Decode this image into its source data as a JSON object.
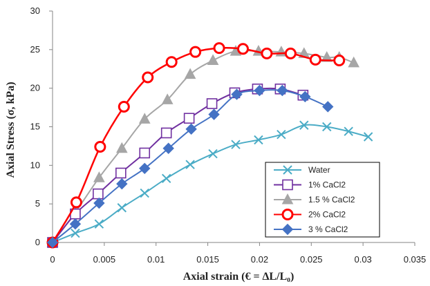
{
  "chart_data": {
    "type": "line",
    "title": "",
    "xlabel": "Axial strain (€ = ∆L/L₀)",
    "ylabel": "Axial Stress (σ, kPa)",
    "xlim": [
      0,
      0.035
    ],
    "ylim": [
      0,
      30
    ],
    "x_ticks": [
      "0",
      "0.005",
      "0.01",
      "0.015",
      "0.02",
      "0.025",
      "0.03",
      "0.035"
    ],
    "y_ticks": [
      "0",
      "5",
      "10",
      "15",
      "20",
      "25",
      "30"
    ],
    "grid": false,
    "legend_position": "bottom-right",
    "series": [
      {
        "name": "Water",
        "color": "#4bacc6",
        "marker": "x",
        "points": [
          [
            0,
            0
          ],
          [
            0.0022,
            1.2
          ],
          [
            0.0045,
            2.4
          ],
          [
            0.0067,
            4.5
          ],
          [
            0.0089,
            6.4
          ],
          [
            0.011,
            8.3
          ],
          [
            0.0133,
            10.1
          ],
          [
            0.0155,
            11.5
          ],
          [
            0.0177,
            12.7
          ],
          [
            0.0199,
            13.3
          ],
          [
            0.0221,
            14.0
          ],
          [
            0.0243,
            15.2
          ],
          [
            0.0265,
            15.0
          ],
          [
            0.0286,
            14.4
          ],
          [
            0.0305,
            13.7
          ]
        ]
      },
      {
        "name": "1% CaCl2",
        "color": "#7030a0",
        "marker": "square",
        "points": [
          [
            0,
            0
          ],
          [
            0.0022,
            3.7
          ],
          [
            0.0044,
            6.3
          ],
          [
            0.0066,
            9.0
          ],
          [
            0.0089,
            11.6
          ],
          [
            0.011,
            14.2
          ],
          [
            0.0132,
            16.1
          ],
          [
            0.0154,
            18.0
          ],
          [
            0.0176,
            19.4
          ],
          [
            0.0198,
            19.9
          ],
          [
            0.022,
            19.9
          ],
          [
            0.0242,
            19.1
          ]
        ]
      },
      {
        "name": "1.5 % CaCl2",
        "color": "#a6a6a6",
        "marker": "triangle",
        "points": [
          [
            0,
            0
          ],
          [
            0.0022,
            3.9
          ],
          [
            0.0045,
            8.4
          ],
          [
            0.0067,
            12.2
          ],
          [
            0.0089,
            16.0
          ],
          [
            0.0111,
            18.5
          ],
          [
            0.0133,
            21.8
          ],
          [
            0.0155,
            23.6
          ],
          [
            0.0177,
            24.8
          ],
          [
            0.0199,
            24.8
          ],
          [
            0.0221,
            24.7
          ],
          [
            0.0243,
            24.5
          ],
          [
            0.0265,
            24.0
          ],
          [
            0.0277,
            24.0
          ],
          [
            0.0291,
            23.3
          ]
        ]
      },
      {
        "name": "2% CaCl2",
        "color": "#ff0000",
        "marker": "circle",
        "points": [
          [
            0,
            0
          ],
          [
            0.0023,
            5.2
          ],
          [
            0.0046,
            12.4
          ],
          [
            0.0069,
            17.6
          ],
          [
            0.0092,
            21.4
          ],
          [
            0.0115,
            23.4
          ],
          [
            0.0138,
            24.7
          ],
          [
            0.0161,
            25.2
          ],
          [
            0.0184,
            25.1
          ],
          [
            0.0207,
            24.5
          ],
          [
            0.023,
            24.5
          ],
          [
            0.0254,
            23.7
          ],
          [
            0.0277,
            23.6
          ]
        ]
      },
      {
        "name": "3 % CaCl2",
        "color": "#4472c4",
        "marker": "diamond",
        "points": [
          [
            0,
            0
          ],
          [
            0.0022,
            2.4
          ],
          [
            0.0045,
            5.1
          ],
          [
            0.0067,
            7.6
          ],
          [
            0.0089,
            9.6
          ],
          [
            0.0112,
            12.2
          ],
          [
            0.0134,
            14.7
          ],
          [
            0.0156,
            16.6
          ],
          [
            0.0178,
            19.2
          ],
          [
            0.02,
            19.7
          ],
          [
            0.0222,
            19.7
          ],
          [
            0.0244,
            18.9
          ],
          [
            0.0266,
            17.6
          ]
        ]
      }
    ]
  }
}
